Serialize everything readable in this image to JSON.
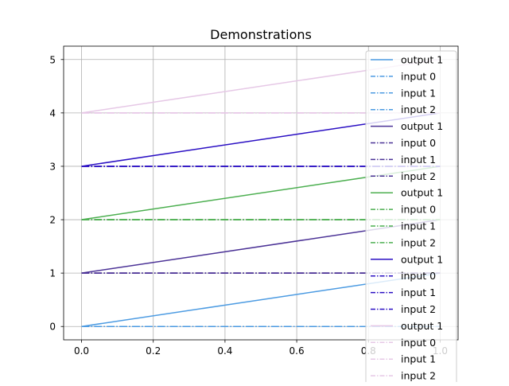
{
  "chart_data": {
    "type": "line",
    "title": "Demonstrations",
    "xlabel": "",
    "ylabel": "",
    "xlim": [
      -0.05,
      1.05
    ],
    "ylim": [
      -0.25,
      5.25
    ],
    "x_ticks": [
      0.0,
      0.2,
      0.4,
      0.6,
      0.8,
      1.0
    ],
    "x_tick_labels": [
      "0.0",
      "0.2",
      "0.4",
      "0.6",
      "0.8",
      "1.0"
    ],
    "y_ticks": [
      0,
      1,
      2,
      3,
      4,
      5
    ],
    "y_tick_labels": [
      "0",
      "1",
      "2",
      "3",
      "4",
      "5"
    ],
    "grid": true,
    "legend_position": "top-right",
    "series": [
      {
        "name": "output 1",
        "color": "#4c9be2",
        "style": "solid",
        "x": [
          0,
          1
        ],
        "y": [
          0,
          1
        ]
      },
      {
        "name": "input 0",
        "color": "#4c9be2",
        "style": "dashdot",
        "x": [
          0,
          1
        ],
        "y": [
          0,
          0
        ]
      },
      {
        "name": "input 1",
        "color": "#4c9be2",
        "style": "dashdot",
        "x": [
          0,
          1
        ],
        "y": [
          0,
          0
        ]
      },
      {
        "name": "input 2",
        "color": "#4c9be2",
        "style": "dashdot",
        "x": [
          0,
          1
        ],
        "y": [
          0,
          0
        ]
      },
      {
        "name": "output 1",
        "color": "#4b3296",
        "style": "solid",
        "x": [
          0,
          1
        ],
        "y": [
          1,
          2
        ]
      },
      {
        "name": "input 0",
        "color": "#4b3296",
        "style": "dashdot",
        "x": [
          0,
          1
        ],
        "y": [
          1,
          1
        ]
      },
      {
        "name": "input 1",
        "color": "#4b3296",
        "style": "dashdot",
        "x": [
          0,
          1
        ],
        "y": [
          1,
          1
        ]
      },
      {
        "name": "input 2",
        "color": "#4b3296",
        "style": "dashdot",
        "x": [
          0,
          1
        ],
        "y": [
          1,
          1
        ]
      },
      {
        "name": "output 1",
        "color": "#4caf50",
        "style": "solid",
        "x": [
          0,
          1
        ],
        "y": [
          2,
          3
        ]
      },
      {
        "name": "input 0",
        "color": "#4caf50",
        "style": "dashdot",
        "x": [
          0,
          1
        ],
        "y": [
          2,
          2
        ]
      },
      {
        "name": "input 1",
        "color": "#4caf50",
        "style": "dashdot",
        "x": [
          0,
          1
        ],
        "y": [
          2,
          2
        ]
      },
      {
        "name": "input 2",
        "color": "#4caf50",
        "style": "dashdot",
        "x": [
          0,
          1
        ],
        "y": [
          2,
          2
        ]
      },
      {
        "name": "output 1",
        "color": "#2a0fc3",
        "style": "solid",
        "x": [
          0,
          1
        ],
        "y": [
          3,
          4
        ]
      },
      {
        "name": "input 0",
        "color": "#2a0fc3",
        "style": "dashdot",
        "x": [
          0,
          1
        ],
        "y": [
          3,
          3
        ]
      },
      {
        "name": "input 1",
        "color": "#2a0fc3",
        "style": "dashdot",
        "x": [
          0,
          1
        ],
        "y": [
          3,
          3
        ]
      },
      {
        "name": "input 2",
        "color": "#2a0fc3",
        "style": "dashdot",
        "x": [
          0,
          1
        ],
        "y": [
          3,
          3
        ]
      },
      {
        "name": "output 1",
        "color": "#e6c8e6",
        "style": "solid",
        "x": [
          0,
          1
        ],
        "y": [
          4,
          5
        ]
      },
      {
        "name": "input 0",
        "color": "#e6c8e6",
        "style": "dashdot",
        "x": [
          0,
          1
        ],
        "y": [
          4,
          4
        ]
      },
      {
        "name": "input 1",
        "color": "#e6c8e6",
        "style": "dashdot",
        "x": [
          0,
          1
        ],
        "y": [
          4,
          4
        ]
      },
      {
        "name": "input 2",
        "color": "#e6c8e6",
        "style": "dashdot",
        "x": [
          0,
          1
        ],
        "y": [
          4,
          4
        ]
      }
    ]
  }
}
